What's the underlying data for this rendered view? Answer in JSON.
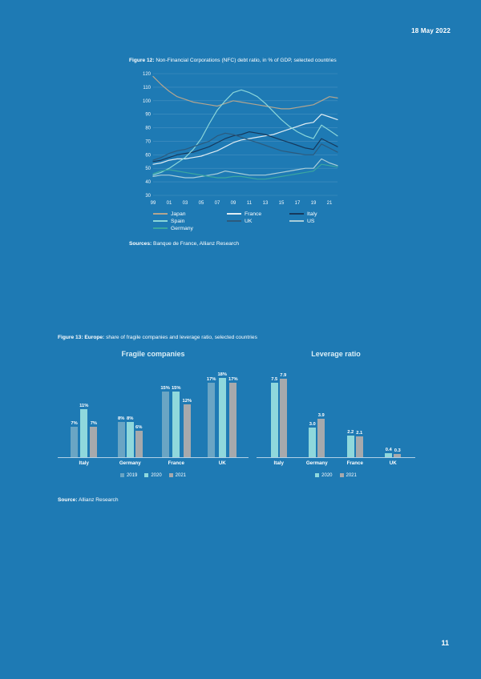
{
  "page": {
    "date": "18 May 2022",
    "page_number": "11",
    "background_color": "#1e7ab4"
  },
  "figure12": {
    "caption_label": "Figure 12:",
    "caption_text": " Non-Financial Corporations (NFC) debt ratio, in % of GDP, selected countries",
    "sources_label": "Sources:",
    "sources_text": " Banque de France, Allianz Research"
  },
  "figure13": {
    "caption_label": "Figure 13: Europe:",
    "caption_text": " share of fragile companies and leverage ratio, selected countries",
    "source_label": "Source:",
    "source_text": " Allianz Research"
  },
  "chart_data": [
    {
      "type": "line",
      "title": "Non-Financial Corporations (NFC) debt ratio, in % of GDP, selected countries",
      "x": [
        1999,
        2000,
        2001,
        2002,
        2003,
        2004,
        2005,
        2006,
        2007,
        2008,
        2009,
        2010,
        2011,
        2012,
        2013,
        2014,
        2015,
        2016,
        2017,
        2018,
        2019,
        2020,
        2021,
        2022
      ],
      "x_tick_labels": [
        "99",
        "01",
        "03",
        "05",
        "07",
        "09",
        "11",
        "13",
        "15",
        "17",
        "19",
        "21"
      ],
      "ylim": [
        30,
        120
      ],
      "y_ticks": [
        30,
        40,
        50,
        60,
        70,
        80,
        90,
        100,
        110,
        120
      ],
      "grid": true,
      "legend_position": "bottom",
      "legend_order": [
        "Japan",
        "France",
        "Italy",
        "Spain",
        "UK",
        "US",
        "Germany"
      ],
      "series": [
        {
          "name": "Japan",
          "color": "#b3a58f",
          "values": [
            118,
            112,
            107,
            103,
            101,
            99,
            98,
            97,
            96,
            98,
            100,
            99,
            98,
            97,
            96,
            95,
            94,
            94,
            95,
            96,
            97,
            100,
            103,
            102
          ]
        },
        {
          "name": "France",
          "color": "#e0edf3",
          "values": [
            53,
            54,
            56,
            57,
            57,
            58,
            59,
            61,
            63,
            66,
            69,
            71,
            72,
            73,
            74,
            75,
            77,
            79,
            81,
            83,
            84,
            90,
            88,
            86
          ]
        },
        {
          "name": "Italy",
          "color": "#16395c",
          "values": [
            55,
            56,
            58,
            60,
            61,
            62,
            64,
            66,
            69,
            72,
            74,
            75,
            77,
            76,
            75,
            73,
            71,
            69,
            67,
            65,
            64,
            72,
            69,
            66
          ]
        },
        {
          "name": "Spain",
          "color": "#8ad6da",
          "values": [
            45,
            47,
            50,
            54,
            58,
            64,
            72,
            83,
            93,
            100,
            106,
            108,
            106,
            103,
            98,
            92,
            86,
            81,
            77,
            74,
            72,
            82,
            78,
            74
          ]
        },
        {
          "name": "UK",
          "color": "#2c5a7d",
          "values": [
            56,
            58,
            61,
            63,
            64,
            66,
            68,
            70,
            74,
            76,
            75,
            73,
            71,
            69,
            67,
            65,
            63,
            62,
            61,
            60,
            60,
            68,
            65,
            62
          ]
        },
        {
          "name": "US",
          "color": "#a9cdd9",
          "values": [
            44,
            45,
            45,
            44,
            43,
            43,
            44,
            45,
            46,
            48,
            47,
            46,
            45,
            45,
            45,
            46,
            47,
            48,
            49,
            50,
            50,
            57,
            54,
            52
          ]
        },
        {
          "name": "Germany",
          "color": "#3aa6a0",
          "values": [
            46,
            48,
            49,
            48,
            47,
            46,
            45,
            44,
            43,
            43,
            44,
            44,
            43,
            42,
            42,
            43,
            44,
            45,
            46,
            47,
            48,
            53,
            52,
            51
          ]
        }
      ]
    },
    {
      "type": "bar",
      "title": "Fragile companies",
      "categories": [
        "Italy",
        "Germany",
        "France",
        "UK"
      ],
      "ymax": 19,
      "legend_position": "bottom",
      "series": [
        {
          "name": "2019",
          "color": "#6aa5c4",
          "values": [
            7,
            8,
            15,
            17
          ],
          "labels": [
            "7%",
            "8%",
            "15%",
            "17%"
          ]
        },
        {
          "name": "2020",
          "color": "#8fd8dc",
          "values": [
            11,
            8,
            15,
            18
          ],
          "labels": [
            "11%",
            "8%",
            "15%",
            "18%"
          ]
        },
        {
          "name": "2021",
          "color": "#a7a9ac",
          "values": [
            7,
            6,
            12,
            17
          ],
          "labels": [
            "7%",
            "6%",
            "12%",
            "17%"
          ]
        }
      ]
    },
    {
      "type": "bar",
      "title": "Leverage ratio",
      "categories": [
        "Italy",
        "Germany",
        "France",
        "UK"
      ],
      "ymax": 8.4,
      "legend_position": "bottom",
      "series": [
        {
          "name": "2020",
          "color": "#8fd8dc",
          "values": [
            7.5,
            3.0,
            2.2,
            0.4
          ],
          "labels": [
            "7.5",
            "3.0",
            "2.2",
            "0.4"
          ]
        },
        {
          "name": "2021",
          "color": "#a7a9ac",
          "values": [
            7.9,
            3.9,
            2.1,
            0.3
          ],
          "labels": [
            "7.9",
            "3.9",
            "2.1",
            "0.3"
          ]
        }
      ]
    }
  ]
}
